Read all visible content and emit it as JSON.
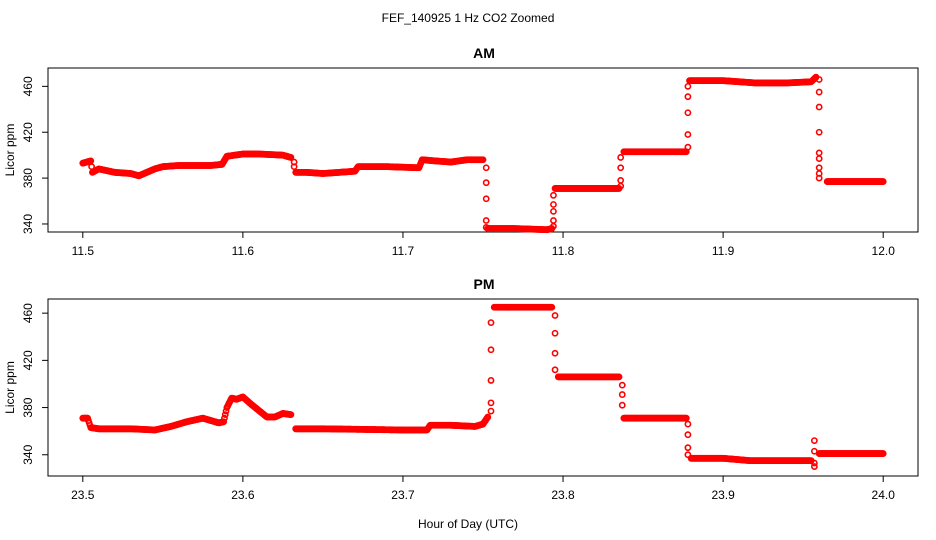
{
  "figure": {
    "title": "FEF_140925  1 Hz CO2 Zoomed",
    "xlabel": "Hour of Day (UTC)"
  },
  "colors": {
    "points": "#ff0000",
    "axis": "#000000"
  },
  "chart_data": [
    {
      "type": "scatter",
      "title": "AM",
      "ylabel": "Licor ppm",
      "xlim": [
        11.5,
        12.0
      ],
      "ylim": [
        333,
        476
      ],
      "xticks": [
        "11.5",
        "11.6",
        "11.7",
        "11.8",
        "11.9",
        "12.0"
      ],
      "yticks": [
        "340",
        "380",
        "420",
        "460"
      ],
      "series": [
        {
          "marker": "open-circle",
          "color": "#ff0000",
          "segments": [
            {
              "x": [
                11.5,
                11.505,
                11.506,
                11.51,
                11.52,
                11.53,
                11.535,
                11.54,
                11.545,
                11.55,
                11.56,
                11.58,
                11.587,
                11.59,
                11.6,
                11.61,
                11.625,
                11.63
              ],
              "y": [
                393,
                395,
                385,
                388,
                385,
                384,
                382,
                385,
                388,
                390,
                391,
                391,
                392,
                399,
                401,
                401,
                400,
                398
              ]
            },
            {
              "x": [
                11.633,
                11.64,
                11.65,
                11.66,
                11.67,
                11.672,
                11.69,
                11.71,
                11.712,
                11.72,
                11.73,
                11.74,
                11.75
              ],
              "y": [
                385,
                385,
                384,
                385,
                386,
                390,
                390,
                389,
                396,
                395,
                394,
                396,
                396
              ]
            },
            {
              "x": [
                11.753,
                11.77,
                11.79,
                11.793
              ],
              "y": [
                336,
                336,
                335,
                336
              ]
            },
            {
              "x": [
                11.795,
                11.81,
                11.83,
                11.835
              ],
              "y": [
                371,
                371,
                371,
                371
              ]
            },
            {
              "x": [
                11.838,
                11.855,
                11.87,
                11.877
              ],
              "y": [
                403,
                403,
                403,
                403
              ]
            },
            {
              "x": [
                11.879,
                11.9,
                11.92,
                11.94,
                11.955,
                11.958
              ],
              "y": [
                465,
                465,
                463,
                463,
                464,
                468
              ]
            },
            {
              "x": [
                11.965,
                11.98,
                12.0
              ],
              "y": [
                377,
                377,
                377
              ]
            }
          ],
          "transitions": [
            {
              "x": 11.632,
              "y": [
                394,
                390
              ]
            },
            {
              "x": 11.752,
              "y": [
                389,
                376,
                362,
                343,
                337
              ]
            },
            {
              "x": 11.794,
              "y": [
                338,
                343,
                351,
                357,
                365
              ]
            },
            {
              "x": 11.836,
              "y": [
                373,
                378,
                389,
                398
              ]
            },
            {
              "x": 11.878,
              "y": [
                407,
                418,
                437,
                451,
                460
              ]
            },
            {
              "x": 11.96,
              "y": [
                466,
                455,
                442,
                420,
                402,
                397,
                389,
                384,
                380
              ]
            }
          ]
        }
      ]
    },
    {
      "type": "scatter",
      "title": "PM",
      "ylabel": "Licor ppm",
      "xlim": [
        23.5,
        24.0
      ],
      "ylim": [
        322,
        472
      ],
      "xticks": [
        "23.5",
        "23.6",
        "23.7",
        "23.8",
        "23.9",
        "24.0"
      ],
      "yticks": [
        "340",
        "380",
        "420",
        "460"
      ],
      "series": [
        {
          "marker": "open-circle",
          "color": "#ff0000",
          "segments": [
            {
              "x": [
                23.5,
                23.503,
                23.505,
                23.51,
                23.53,
                23.545,
                23.555,
                23.565,
                23.575,
                23.585,
                23.588,
                23.59,
                23.593,
                23.596,
                23.6,
                23.605,
                23.615,
                23.62,
                23.625,
                23.63
              ],
              "y": [
                371,
                371,
                363,
                362,
                362,
                361,
                364,
                368,
                371,
                367,
                368,
                380,
                388,
                387,
                389,
                383,
                372,
                372,
                375,
                374
              ]
            },
            {
              "x": [
                23.633,
                23.65,
                23.7,
                23.715,
                23.717,
                23.73,
                23.745,
                23.75,
                23.753
              ],
              "y": [
                362,
                362,
                361,
                361,
                365,
                365,
                364,
                366,
                372
              ]
            },
            {
              "x": [
                23.757,
                23.77,
                23.793
              ],
              "y": [
                465,
                465,
                465
              ]
            },
            {
              "x": [
                23.797,
                23.81,
                23.835
              ],
              "y": [
                406,
                406,
                406
              ]
            },
            {
              "x": [
                23.838,
                23.855,
                23.877
              ],
              "y": [
                371,
                371,
                371
              ]
            },
            {
              "x": [
                23.88,
                23.9,
                23.917,
                23.93,
                23.955
              ],
              "y": [
                337,
                337,
                335,
                335,
                335
              ]
            },
            {
              "x": [
                23.96,
                23.975,
                24.0
              ],
              "y": [
                341,
                341,
                341
              ]
            }
          ],
          "transitions": [
            {
              "x": 23.755,
              "y": [
                377,
                384,
                403,
                429,
                452
              ]
            },
            {
              "x": 23.795,
              "y": [
                458,
                443,
                426,
                412
              ]
            },
            {
              "x": 23.837,
              "y": [
                399,
                391,
                382
              ]
            },
            {
              "x": 23.878,
              "y": [
                366,
                357,
                346,
                340
              ]
            },
            {
              "x": 23.957,
              "y": [
                352,
                343,
                330,
                333
              ]
            }
          ]
        }
      ]
    }
  ]
}
